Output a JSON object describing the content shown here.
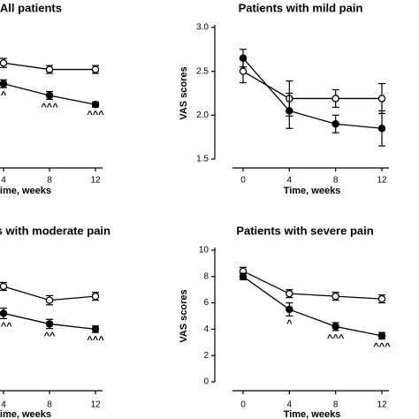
{
  "chart_data": [
    {
      "type": "line",
      "title": "All patients",
      "xlabel": "Time, weeks",
      "x": [
        4,
        8,
        12
      ],
      "xlim": [
        0,
        12
      ],
      "xticks": [
        4,
        8,
        12
      ],
      "ylim": [
        0,
        10
      ],
      "series": [
        {
          "color": "#000000",
          "marker": "open",
          "values": [
            7.4,
            6.9,
            6.9
          ],
          "errors": [
            0.35,
            0.3,
            0.3
          ]
        },
        {
          "color": "#000000",
          "marker": "filled",
          "values": [
            5.8,
            4.9,
            4.2
          ],
          "errors": [
            0.3,
            0.3,
            0.2
          ],
          "annotations": [
            "^",
            "^^^",
            "^^^"
          ]
        }
      ]
    },
    {
      "type": "line",
      "title": "Patients with mild pain",
      "xlabel": "Time, weeks",
      "ylabel": "VAS scores",
      "x": [
        0,
        4,
        8,
        12
      ],
      "xlim": [
        0,
        12
      ],
      "xticks": [
        0,
        4,
        8,
        12
      ],
      "ylim": [
        1.5,
        3.0
      ],
      "yticks": [
        {
          "value": 1.5,
          "label": "1.5"
        },
        {
          "value": 2,
          "label": "2.0"
        },
        {
          "value": 2.5,
          "label": "2.5"
        },
        {
          "value": 3,
          "label": "3.0"
        }
      ],
      "series": [
        {
          "color": "#000000",
          "marker": "open",
          "values": [
            2.5,
            2.19,
            2.19,
            2.19
          ],
          "errors": [
            0.13,
            0.2,
            0.1,
            0.17
          ]
        },
        {
          "color": "#000000",
          "marker": "filled",
          "values": [
            2.65,
            2.05,
            1.9,
            1.85
          ],
          "errors": [
            0.1,
            0.2,
            0.1,
            0.2
          ]
        }
      ]
    },
    {
      "type": "line",
      "title": "Patients with moderate pain",
      "xlabel": "Time, weeks",
      "x": [
        4,
        8,
        12
      ],
      "xlim": [
        0,
        12
      ],
      "xticks": [
        4,
        8,
        12
      ],
      "ylim": [
        0,
        10
      ],
      "series": [
        {
          "color": "#000000",
          "marker": "open",
          "values": [
            7.25,
            6.2,
            6.5
          ],
          "errors": [
            0.3,
            0.35,
            0.3
          ]
        },
        {
          "color": "#000000",
          "marker": "filled",
          "values": [
            5.2,
            4.4,
            4.0
          ],
          "errors": [
            0.4,
            0.35,
            0.25
          ],
          "annotations": [
            "^^^",
            "^^",
            "^^^"
          ]
        }
      ]
    },
    {
      "type": "line",
      "title": "Patients with severe pain",
      "xlabel": "Time, weeks",
      "ylabel": "VAS scores",
      "x": [
        0,
        4,
        8,
        12
      ],
      "xlim": [
        0,
        12
      ],
      "xticks": [
        0,
        4,
        8,
        12
      ],
      "ylim": [
        0,
        10
      ],
      "yticks": [
        0,
        2,
        4,
        6,
        8,
        10
      ],
      "series": [
        {
          "color": "#000000",
          "marker": "open",
          "values": [
            8.4,
            6.7,
            6.5,
            6.3
          ],
          "errors": [
            0.3,
            0.3,
            0.3,
            0.3
          ]
        },
        {
          "color": "#000000",
          "marker": "filled",
          "values": [
            8.0,
            5.5,
            4.2,
            3.5
          ],
          "errors": [
            0.25,
            0.5,
            0.3,
            0.25
          ],
          "annotations": [
            null,
            "^",
            "^^^",
            "^^^"
          ]
        }
      ]
    }
  ]
}
